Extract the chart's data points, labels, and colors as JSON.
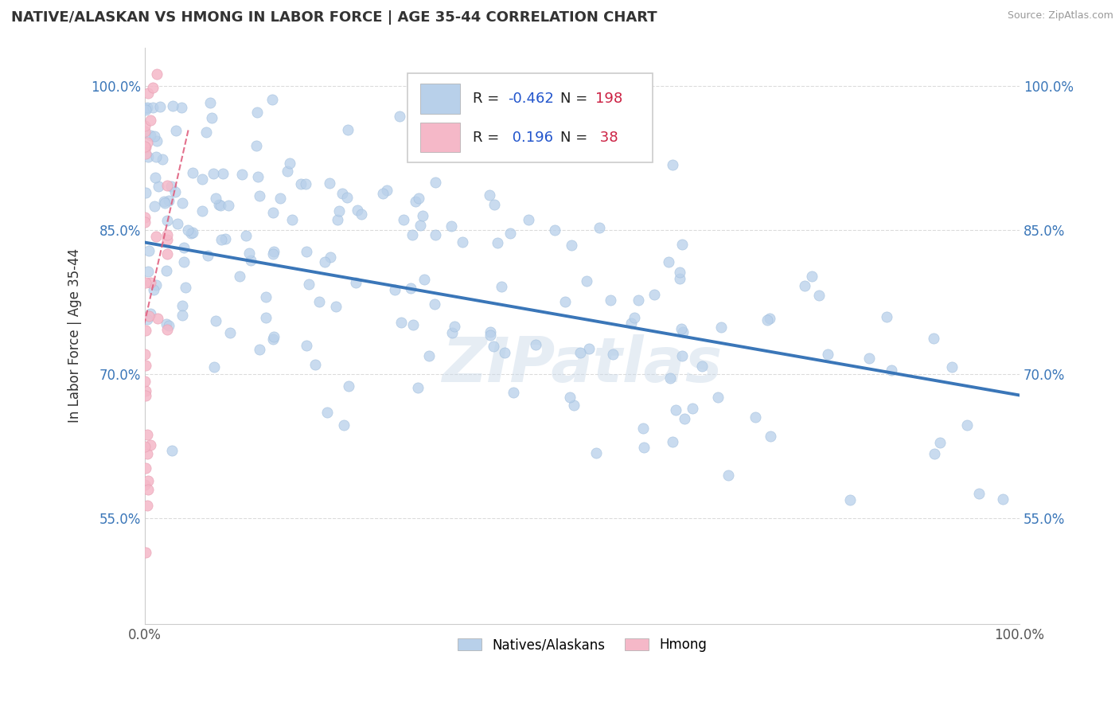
{
  "title": "NATIVE/ALASKAN VS HMONG IN LABOR FORCE | AGE 35-44 CORRELATION CHART",
  "source": "Source: ZipAtlas.com",
  "ylabel": "In Labor Force | Age 35-44",
  "xlim": [
    0.0,
    1.0
  ],
  "ylim": [
    0.44,
    1.04
  ],
  "yticks": [
    0.55,
    0.7,
    0.85,
    1.0
  ],
  "ytick_labels": [
    "55.0%",
    "70.0%",
    "85.0%",
    "100.0%"
  ],
  "xticks": [
    0.0,
    1.0
  ],
  "xtick_labels": [
    "0.0%",
    "100.0%"
  ],
  "blue_R": -0.462,
  "blue_N": 198,
  "pink_R": 0.196,
  "pink_N": 38,
  "blue_color": "#b8d0ea",
  "blue_edge_color": "#a0bedd",
  "blue_line_color": "#3a76b8",
  "pink_color": "#f5b8c8",
  "pink_edge_color": "#e8a0b4",
  "pink_dash_color": "#e06080",
  "watermark": "ZIPatlas",
  "legend_label_blue": "Natives/Alaskans",
  "legend_label_pink": "Hmong",
  "blue_line_start_y": 0.837,
  "blue_line_end_y": 0.678,
  "pink_line_x0": 0.0,
  "pink_line_y0": 0.47,
  "pink_line_x1": 0.02,
  "pink_line_y1": 1.02
}
